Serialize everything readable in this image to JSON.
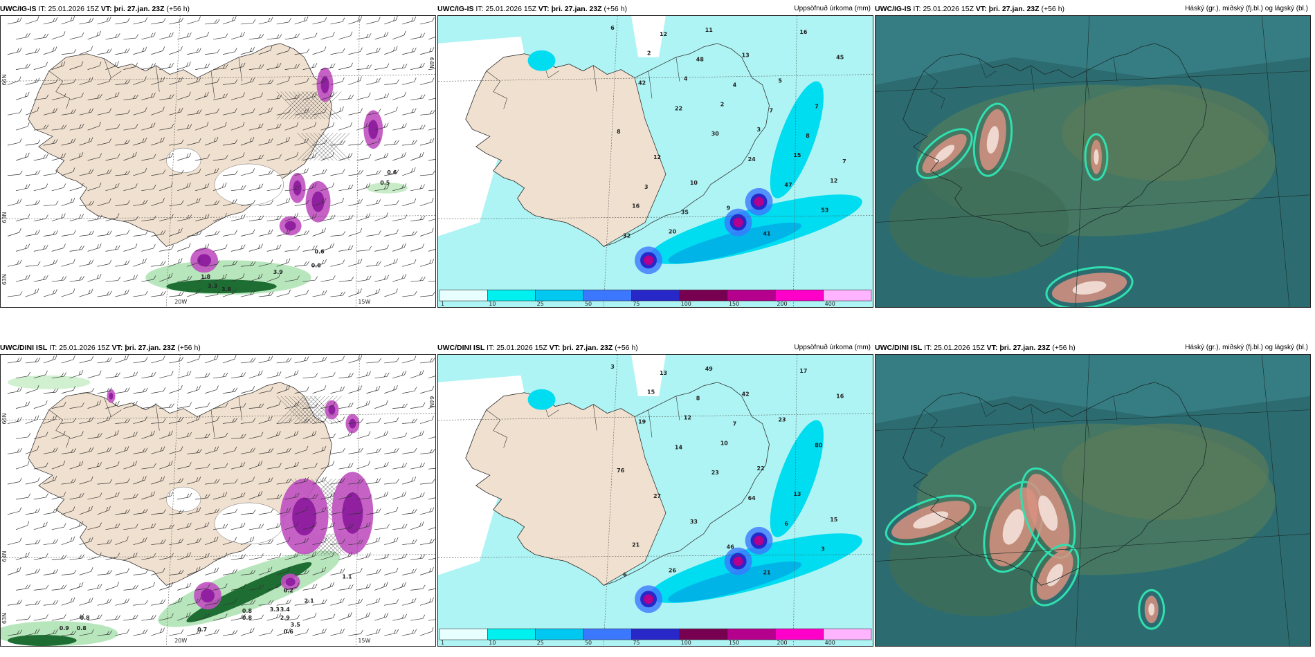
{
  "panels": {
    "p1": {
      "model": "UWC/IG-IS",
      "it_label": "IT:",
      "it": "25.01.2026 15Z",
      "vt_label": "VT:",
      "vt": "þri. 27.jan. 23Z",
      "lead": "(+56 h)",
      "right": ""
    },
    "p2": {
      "model": "UWC/IG-IS",
      "it_label": "IT:",
      "it": "25.01.2026 15Z",
      "vt_label": "VT:",
      "vt": "þri. 27.jan. 23Z",
      "lead": "(+56 h)",
      "right": "Uppsöfnuð úrkoma (mm)"
    },
    "p3": {
      "model": "UWC/IG-IS",
      "it_label": "IT:",
      "it": "25.01.2026 15Z",
      "vt_label": "VT:",
      "vt": "þri. 27.jan. 23Z",
      "lead": "(+56 h)",
      "right": "Háský (gr.), miðský (fj.bl.) og lágský (bl.)"
    },
    "p4": {
      "model": "UWC/DINI ISL",
      "it_label": "IT:",
      "it": "25.01.2026 15Z",
      "vt_label": "VT:",
      "vt": "þri. 27.jan. 23Z",
      "lead": "(+56 h)",
      "right": ""
    },
    "p5": {
      "model": "UWC/DINI ISL",
      "it_label": "IT:",
      "it": "25.01.2026 15Z",
      "vt_label": "VT:",
      "vt": "þri. 27.jan. 23Z",
      "lead": "(+56 h)",
      "right": "Uppsöfnuð úrkoma (mm)"
    },
    "p6": {
      "model": "UWC/DINI ISL",
      "it_label": "IT:",
      "it": "25.01.2026 15Z",
      "vt_label": "VT:",
      "vt": "þri. 27.jan. 23Z",
      "lead": "(+56 h)",
      "right": "Háský (gr.), miðský (fj.bl.) og lágský (bl.)"
    }
  },
  "axis_labels": {
    "lat66": "66N",
    "lat64": "64N",
    "lat63": "63N",
    "lon20": "20W",
    "lon15": "15W",
    "lat_right": "64N"
  },
  "colorbar": {
    "labels": [
      "1",
      "10",
      "25",
      "50",
      "75",
      "100",
      "150",
      "200",
      "400"
    ],
    "colors": [
      "#e8ffff",
      "#00f0f0",
      "#00c8f0",
      "#3c78ff",
      "#2828c8",
      "#780050",
      "#b4008c",
      "#ff00c8",
      "#ffb4ff"
    ]
  },
  "colors": {
    "land": "#f0e0cf",
    "sea_precip": "#aef4f4",
    "cloud_dark": "#2c6c70",
    "cloud_mid": "#4c8a74",
    "heavy": "#a02080",
    "green_band": "#1e6e34"
  },
  "precip_numbers_top": [
    "6",
    "2",
    "4",
    "2",
    "3",
    "15",
    "12",
    "16",
    "20",
    "11",
    "13",
    "5",
    "7",
    "8",
    "12",
    "10",
    "9",
    "41",
    "16",
    "45",
    "42",
    "22",
    "30",
    "24",
    "47",
    "53",
    "32",
    "12",
    "48",
    "4",
    "7",
    "8",
    "7",
    "3",
    "35"
  ],
  "precip_numbers_bottom": [
    "3",
    "15",
    "12",
    "10",
    "22",
    "13",
    "15",
    "21",
    "26",
    "49",
    "42",
    "23",
    "80",
    "76",
    "27",
    "33",
    "46",
    "21",
    "17",
    "16",
    "19",
    "14",
    "23",
    "64",
    "6",
    "3",
    "6",
    "13",
    "8",
    "7"
  ],
  "wind_numbers_top": [
    "0.6",
    "3.3",
    "3.8",
    "1.8",
    "3.9",
    "0.6",
    "0.6",
    "0.5"
  ],
  "wind_numbers_bottom": [
    "0.8",
    "0.9",
    "0.8",
    "0.7",
    "3.3",
    "3.4",
    "2.9",
    "0.6",
    "0.8",
    "0.2",
    "1.1",
    "2.1",
    "3.5",
    "0.8"
  ]
}
